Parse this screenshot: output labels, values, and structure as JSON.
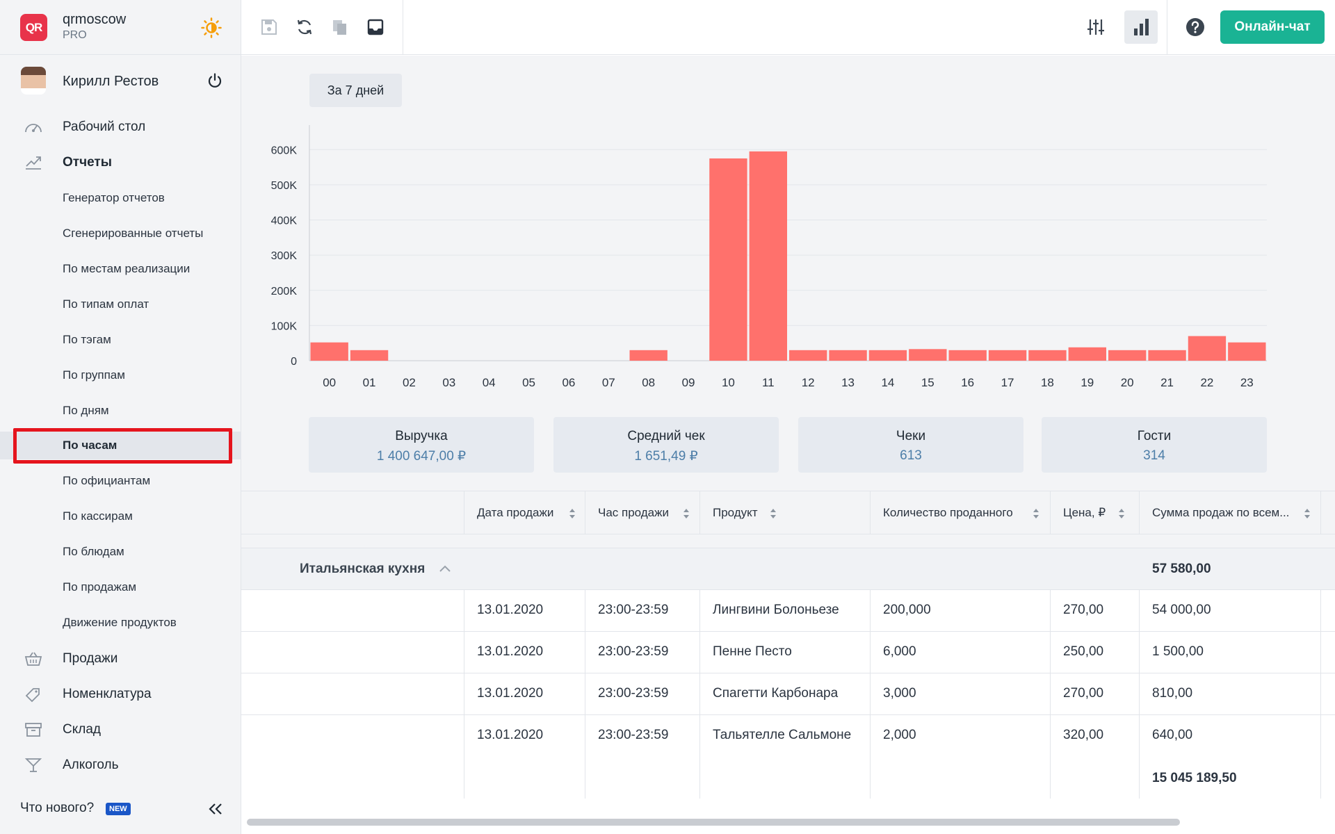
{
  "brand": {
    "logo_text": "QR",
    "name": "qrmoscow",
    "plan": "PRO"
  },
  "user": {
    "name": "Кирилл Рестов"
  },
  "nav": {
    "main_top": [
      {
        "label": "Рабочий стол",
        "icon": "dashboard-icon"
      },
      {
        "label": "Отчеты",
        "icon": "chart-icon",
        "active": true
      }
    ],
    "reports": [
      "Генератор отчетов",
      "Сгенерированные отчеты",
      "По местам реализации",
      "По типам оплат",
      "По тэгам",
      "По группам",
      "По дням",
      "По часам",
      "По официантам",
      "По кассирам",
      "По блюдам",
      "По продажам",
      "Движение продуктов"
    ],
    "selected_report": "По часам",
    "main_bottom": [
      {
        "label": "Продажи",
        "icon": "basket-icon"
      },
      {
        "label": "Номенклатура",
        "icon": "tag-icon"
      },
      {
        "label": "Склад",
        "icon": "archive-icon"
      },
      {
        "label": "Алкоголь",
        "icon": "cocktail-icon"
      }
    ],
    "whats_new": "Что нового?",
    "new_badge": "NEW"
  },
  "toolbar": {
    "chat_label": "Онлайн-чат"
  },
  "period": {
    "label": "За 7 дней"
  },
  "chart_data": {
    "type": "bar",
    "categories": [
      "00",
      "01",
      "02",
      "03",
      "04",
      "05",
      "06",
      "07",
      "08",
      "09",
      "10",
      "11",
      "12",
      "13",
      "14",
      "15",
      "16",
      "17",
      "18",
      "19",
      "20",
      "21",
      "22",
      "23"
    ],
    "values": [
      52000,
      30000,
      0,
      0,
      0,
      0,
      0,
      0,
      30000,
      0,
      575000,
      595000,
      30000,
      30000,
      30000,
      33000,
      30000,
      30000,
      30000,
      38000,
      30000,
      30000,
      70000,
      52000
    ],
    "yticks": [
      "0",
      "100K",
      "200K",
      "300K",
      "400K",
      "500K",
      "600K"
    ],
    "ylim": [
      0,
      650000
    ],
    "color": "#ff716c",
    "grid": true
  },
  "stats": [
    {
      "label": "Выручка",
      "value": "1 400 647,00 ₽"
    },
    {
      "label": "Средний чек",
      "value": "1 651,49 ₽"
    },
    {
      "label": "Чеки",
      "value": "613"
    },
    {
      "label": "Гости",
      "value": "314"
    }
  ],
  "table": {
    "columns": [
      "Дата продажи",
      "Час продажи",
      "Продукт",
      "Количество проданного",
      "Цена, ₽",
      "Сумма продаж по всем..."
    ],
    "group": {
      "name": "Итальянская кухня",
      "total": "57 580,00"
    },
    "rows": [
      [
        "13.01.2020",
        "23:00-23:59",
        "Лингвини Болоньезе",
        "200,000",
        "270,00",
        "54 000,00"
      ],
      [
        "13.01.2020",
        "23:00-23:59",
        "Пенне Песто",
        "6,000",
        "250,00",
        "1 500,00"
      ],
      [
        "13.01.2020",
        "23:00-23:59",
        "Спагетти Карбонара",
        "3,000",
        "270,00",
        "810,00"
      ],
      [
        "13.01.2020",
        "23:00-23:59",
        "Тальятелле Сальмоне",
        "2,000",
        "320,00",
        "640,00"
      ]
    ],
    "grand_total": "15 045 189,50"
  },
  "colors": {
    "accent": "#1ab394",
    "bar": "#ff716c",
    "highlight": "#e5141d",
    "stat_value": "#4d7ea8"
  }
}
